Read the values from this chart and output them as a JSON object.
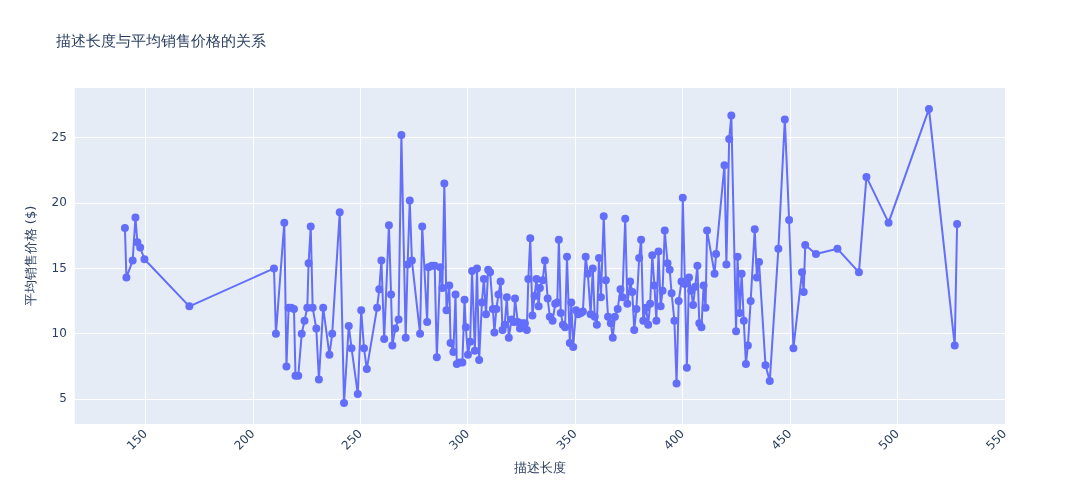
{
  "chart_data": {
    "type": "line",
    "title": "描述长度与平均销售价格的关系",
    "xlabel": "描述长度",
    "ylabel": "平均销售价格 ($)",
    "xlim": [
      117,
      550
    ],
    "xticks": [
      150,
      200,
      250,
      300,
      350,
      400,
      450,
      500,
      550
    ],
    "ylim": [
      3.1,
      28.8
    ],
    "yticks": [
      5,
      10,
      15,
      20,
      25
    ],
    "grid": true,
    "legend": false,
    "marker": "circle",
    "line_style": "solid",
    "series": [
      {
        "color": "#636efa",
        "x": [
          140.3,
          141.0,
          143.9,
          145.2,
          146.1,
          147.4,
          149.4,
          170.3,
          209.7,
          210.6,
          214.5,
          215.5,
          216.5,
          217.7,
          219.0,
          219.7,
          221.0,
          222.6,
          223.9,
          225.2,
          225.8,
          226.8,
          227.7,
          229.4,
          230.6,
          232.6,
          235.5,
          236.8,
          240.3,
          242.3,
          244.5,
          245.8,
          248.7,
          250.3,
          251.6,
          252.9,
          257.7,
          258.7,
          259.7,
          261.0,
          263.2,
          264.2,
          264.8,
          266.1,
          267.7,
          269.0,
          271.0,
          271.9,
          272.9,
          273.9,
          277.7,
          278.7,
          281.0,
          281.6,
          283.2,
          284.5,
          285.5,
          287.1,
          288.1,
          289.0,
          290.0,
          291.3,
          291.9,
          293.2,
          294.2,
          294.8,
          296.1,
          297.4,
          298.4,
          299.0,
          300.0,
          301.0,
          301.9,
          303.2,
          304.2,
          305.2,
          306.5,
          307.4,
          308.4,
          309.4,
          310.3,
          311.6,
          312.3,
          313.2,
          314.2,
          315.2,
          316.1,
          317.1,
          318.1,
          319.0,
          320.3,
          321.3,
          321.9,
          323.2,
          324.2,
          325.2,
          326.5,
          327.4,
          328.1,
          329.0,
          330.0,
          331.0,
          331.9,
          332.9,
          333.5,
          334.8,
          335.8,
          337.1,
          338.1,
          339.4,
          340.6,
          341.6,
          342.3,
          343.2,
          344.2,
          345.2,
          346.1,
          347.4,
          348.1,
          349.0,
          350.3,
          351.3,
          352.6,
          353.5,
          354.8,
          355.8,
          357.1,
          358.1,
          359.0,
          360.0,
          361.0,
          361.9,
          363.2,
          364.2,
          365.2,
          366.5,
          367.4,
          368.4,
          369.7,
          371.0,
          371.9,
          373.2,
          374.2,
          375.5,
          376.5,
          377.4,
          378.4,
          379.7,
          380.6,
          381.6,
          382.9,
          383.9,
          384.8,
          385.8,
          386.8,
          387.7,
          388.7,
          389.7,
          390.6,
          391.6,
          392.9,
          393.9,
          394.8,
          396.1,
          397.1,
          398.1,
          399.4,
          400.0,
          401.0,
          401.9,
          402.9,
          403.9,
          404.8,
          405.8,
          406.8,
          407.7,
          408.7,
          409.7,
          410.6,
          411.3,
          414.8,
          415.5,
          419.4,
          420.3,
          421.6,
          422.6,
          424.8,
          425.5,
          426.5,
          427.4,
          428.4,
          429.4,
          430.3,
          431.6,
          433.5,
          434.5,
          435.5,
          438.5,
          440.5,
          444.5,
          447.5,
          449.5,
          451.5,
          455.5,
          456.3,
          457.0,
          462.0,
          472.0,
          482.0,
          485.5,
          495.8,
          514.6,
          526.6,
          527.7
        ],
        "values": [
          18.1,
          14.3,
          15.6,
          18.9,
          17.0,
          16.6,
          15.7,
          12.1,
          15.0,
          10.0,
          18.5,
          7.5,
          12.0,
          12.0,
          11.9,
          6.8,
          6.8,
          10.0,
          11.0,
          12.0,
          15.4,
          18.2,
          12.0,
          10.4,
          6.5,
          12.0,
          8.4,
          10.0,
          19.3,
          4.7,
          10.6,
          8.9,
          5.4,
          11.8,
          8.9,
          7.3,
          12.0,
          13.4,
          15.6,
          9.6,
          18.3,
          13.0,
          9.1,
          10.4,
          11.1,
          25.2,
          9.7,
          15.3,
          20.2,
          15.6,
          10.0,
          18.2,
          10.9,
          15.1,
          15.2,
          15.2,
          8.2,
          15.1,
          13.5,
          21.5,
          11.8,
          13.7,
          9.3,
          8.6,
          13.0,
          7.7,
          7.8,
          7.8,
          12.6,
          10.5,
          8.4,
          9.4,
          14.8,
          8.7,
          15.0,
          8.0,
          12.4,
          14.2,
          11.5,
          14.9,
          14.7,
          11.9,
          10.1,
          11.9,
          13.0,
          14.0,
          10.3,
          10.7,
          12.8,
          9.7,
          11.1,
          10.9,
          12.7,
          10.9,
          10.4,
          10.8,
          10.8,
          10.3,
          14.2,
          17.3,
          11.4,
          12.9,
          14.2,
          12.1,
          13.5,
          14.1,
          15.6,
          12.7,
          11.3,
          11.0,
          12.3,
          12.4,
          17.2,
          11.6,
          10.7,
          10.5,
          15.9,
          9.3,
          12.4,
          9.0,
          11.8,
          11.5,
          11.6,
          11.7,
          15.9,
          14.6,
          11.5,
          15.0,
          11.3,
          10.7,
          15.8,
          12.8,
          19.0,
          14.1,
          11.3,
          10.8,
          9.7,
          11.3,
          11.9,
          13.4,
          12.8,
          18.8,
          12.3,
          14.0,
          13.2,
          10.3,
          11.9,
          15.8,
          17.2,
          11.0,
          12.0,
          10.7,
          12.3,
          16.0,
          13.7,
          11.0,
          16.3,
          12.1,
          13.3,
          17.9,
          15.4,
          14.9,
          13.1,
          11.0,
          6.2,
          12.5,
          14.0,
          20.4,
          13.8,
          7.4,
          14.3,
          13.3,
          12.2,
          13.6,
          15.2,
          10.8,
          10.5,
          13.7,
          12.0,
          17.9,
          14.6,
          16.1,
          22.9,
          15.3,
          24.9,
          26.7,
          10.2,
          15.9,
          11.6,
          14.6,
          11.0,
          7.7,
          9.1,
          12.5,
          18.0,
          14.3,
          15.5,
          7.6,
          6.4,
          16.5,
          26.4,
          18.7,
          8.9,
          14.7,
          13.2,
          16.8,
          16.1,
          16.5,
          14.7,
          22.0,
          18.5,
          27.2,
          9.1,
          18.4
        ]
      }
    ]
  }
}
